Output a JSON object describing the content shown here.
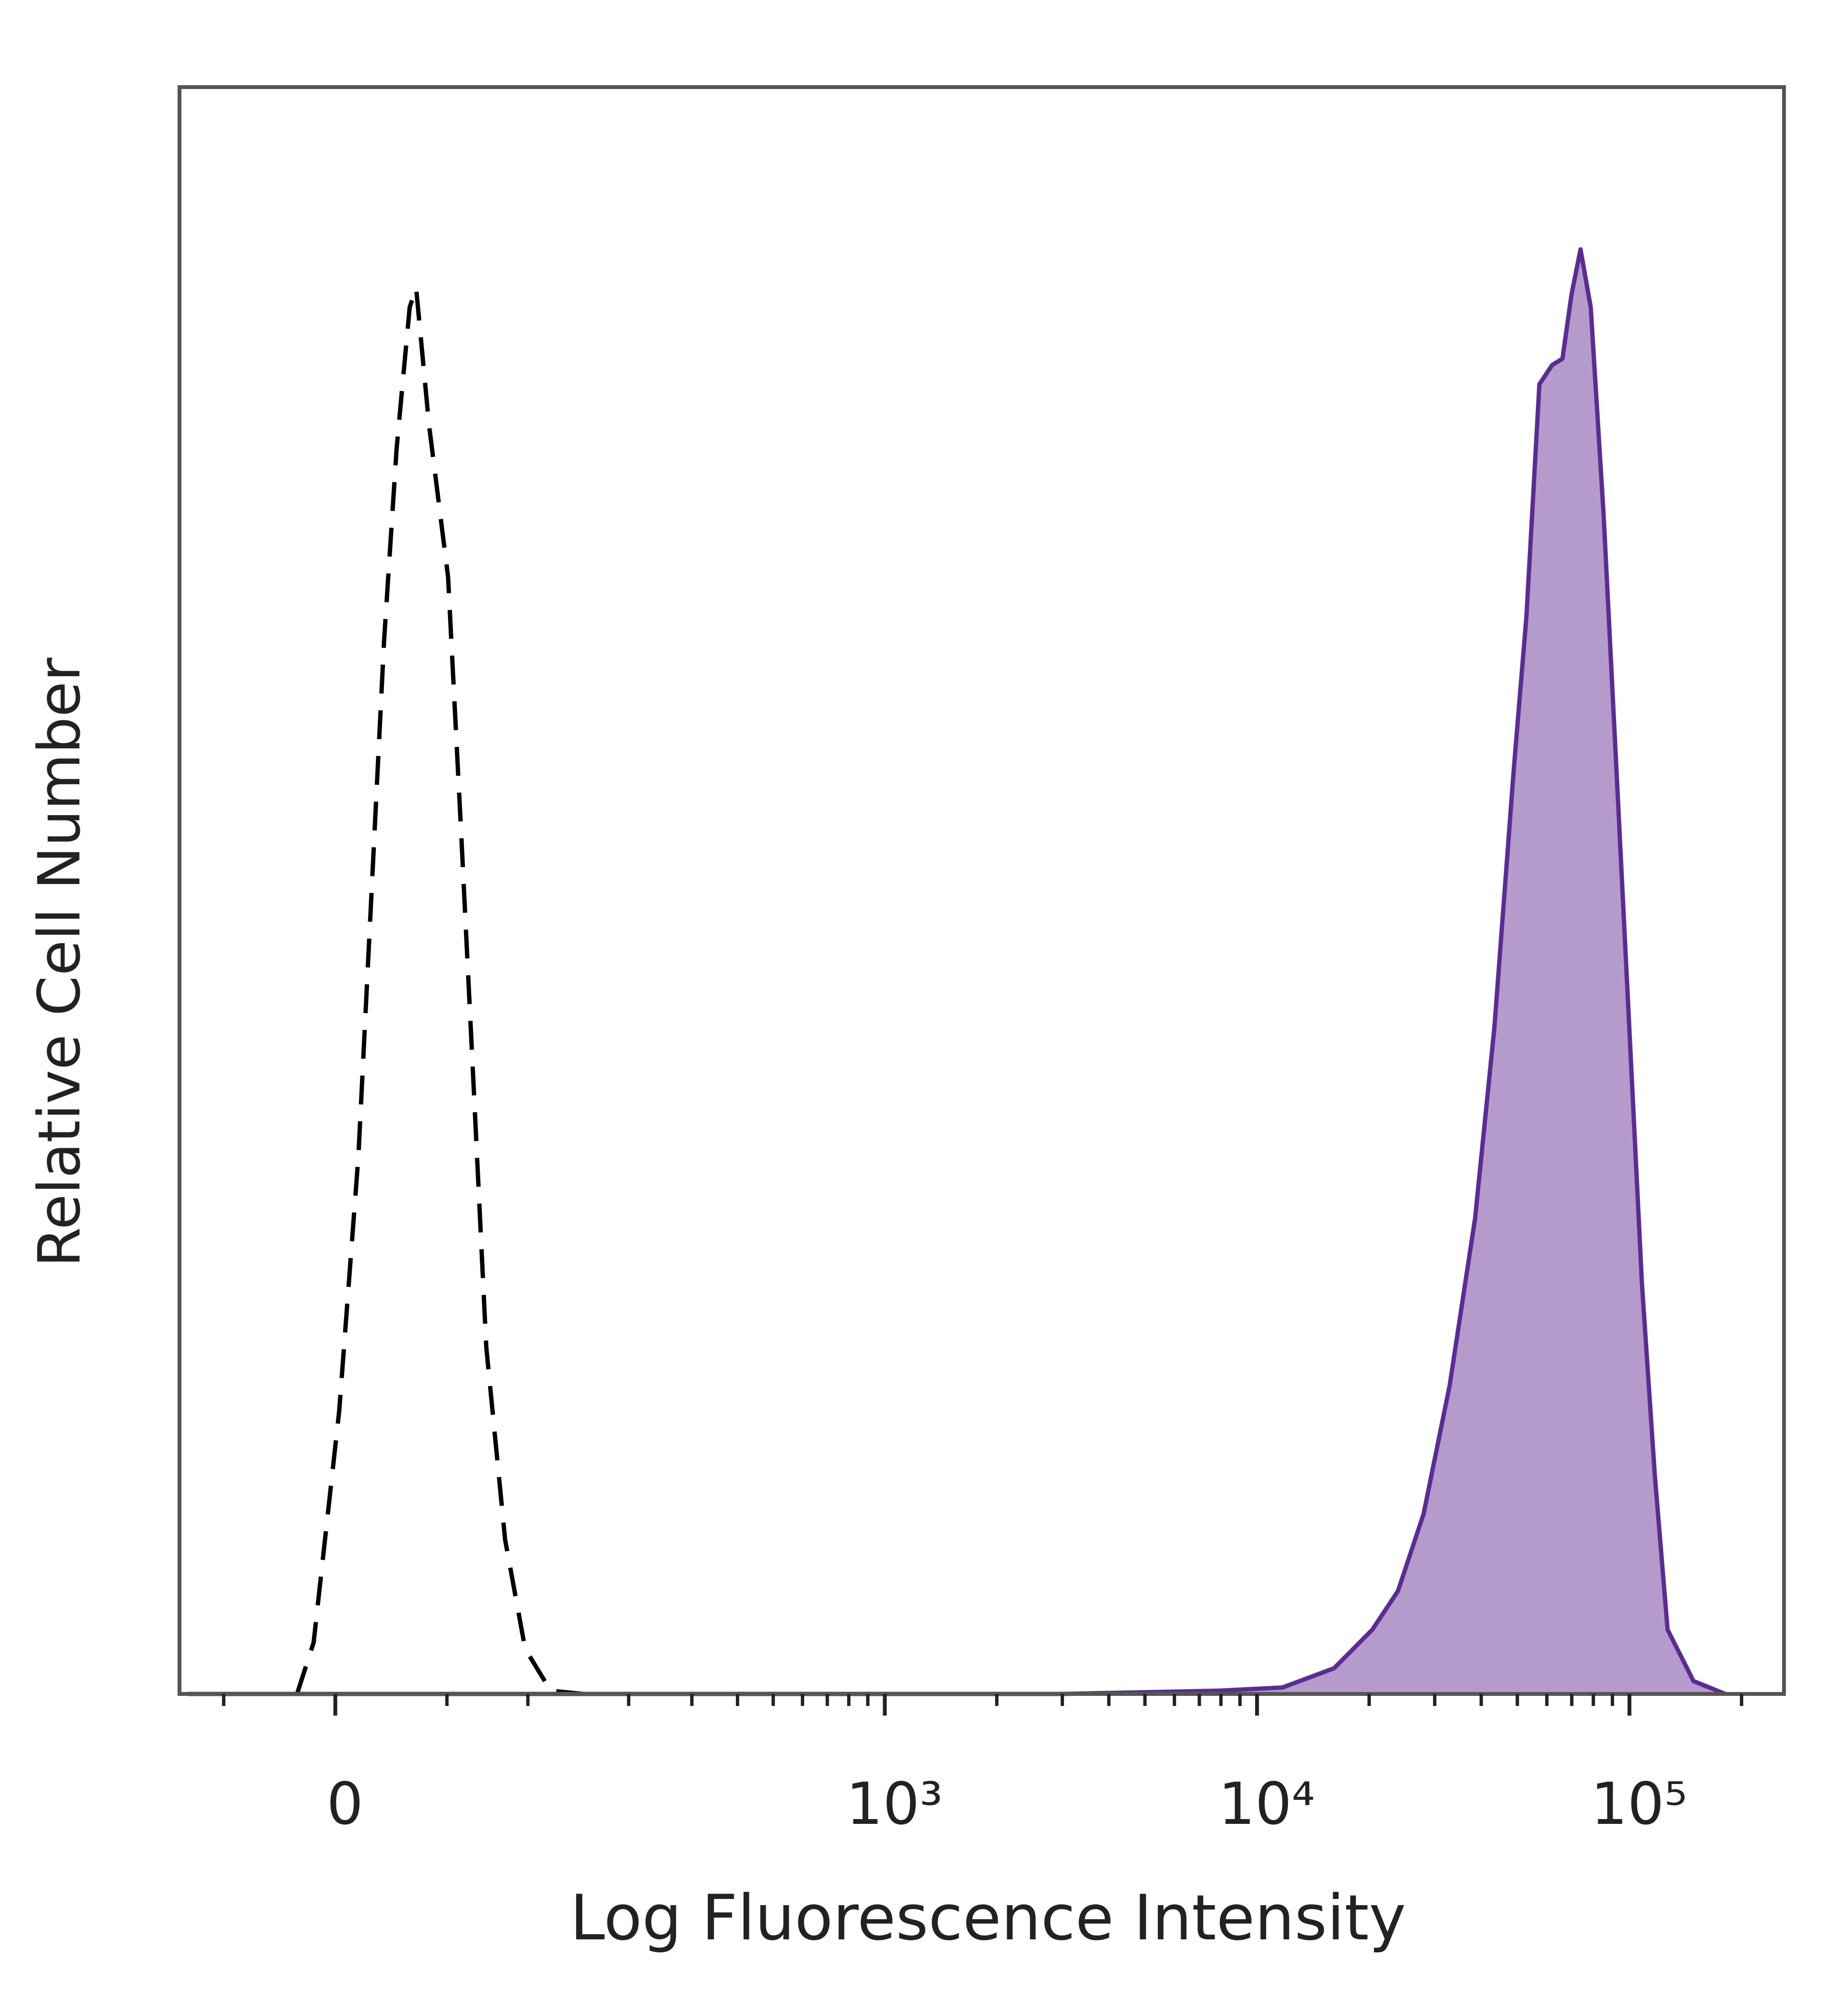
{
  "chart_data": {
    "type": "histogram-overlay",
    "x_label": "Log Fluorescence Intensity",
    "y_label": "Relative Cell Number",
    "xscale": "asinh",
    "xlim": [
      -75,
      260000
    ],
    "ylim": [
      0,
      100
    ],
    "xticks": [
      0,
      {
        "value": 1000,
        "label": "10³"
      },
      {
        "value": 10000,
        "label": "10⁴"
      },
      {
        "value": 100000,
        "label": "10⁵"
      }
    ],
    "xminor_ticks": [
      -50,
      50,
      100,
      200,
      300,
      400,
      500,
      600,
      700,
      800,
      900,
      2000,
      3000,
      4000,
      5000,
      6000,
      7000,
      8000,
      9000,
      20000,
      30000,
      40000,
      50000,
      60000,
      70000,
      80000,
      90000,
      200000
    ],
    "series": [
      {
        "color": "#000000",
        "dashed": true,
        "x": [
          -16,
          -9,
          1.6,
          9.6,
          15,
          20.5,
          26,
          31.9,
          34.9,
          41,
          50.6,
          57.6,
          64.7,
          72,
          84,
          98,
          118,
          148,
          168
        ],
        "values": [
          0,
          3.2,
          17.6,
          33.5,
          49.5,
          65.5,
          77.5,
          86.3,
          87.5,
          79,
          69.5,
          53.5,
          37.5,
          21.6,
          9.6,
          2.8,
          0.2,
          0,
          0
        ]
      },
      {
        "color": "#5a2d91",
        "fill": "#b49bcb",
        "x": [
          -70,
          3000,
          7870,
          11700,
          16100,
          20400,
          23900,
          28000,
          32900,
          38500,
          43400,
          48900,
          52900,
          57300,
          62000,
          66100,
          69900,
          73900,
          78700,
          85200,
          92300,
          99900,
          108000,
          117000,
          126600,
          148600,
          181000
        ],
        "values": [
          0,
          0,
          0.2,
          0.4,
          1.6,
          4,
          6.4,
          11.2,
          19.2,
          29.6,
          41.5,
          57.5,
          67.1,
          81.5,
          82.7,
          83.1,
          87.1,
          89.9,
          86.3,
          73.5,
          57.5,
          41.5,
          25.6,
          13.6,
          4,
          0.8,
          0
        ]
      }
    ]
  }
}
